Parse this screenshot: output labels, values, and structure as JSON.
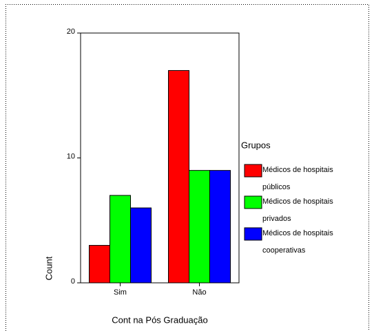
{
  "chart_data": {
    "type": "bar",
    "x_label": "Cont na Pós Graduação",
    "y_label": "Count",
    "legend_title": "Grupos",
    "categories": [
      "Sim",
      "Não"
    ],
    "series": [
      {
        "name": "Médicos de hospitais públicos",
        "color": "#ff0000",
        "values": [
          3,
          17
        ]
      },
      {
        "name": "Médicos de hospitais privados",
        "color": "#00ff00",
        "values": [
          7,
          9
        ]
      },
      {
        "name": "Médicos de hospitais cooperativas",
        "color": "#0000ff",
        "values": [
          6,
          9
        ]
      }
    ],
    "ylim": [
      0,
      20
    ],
    "yticks": [
      0,
      10,
      20
    ],
    "legend": "right"
  }
}
